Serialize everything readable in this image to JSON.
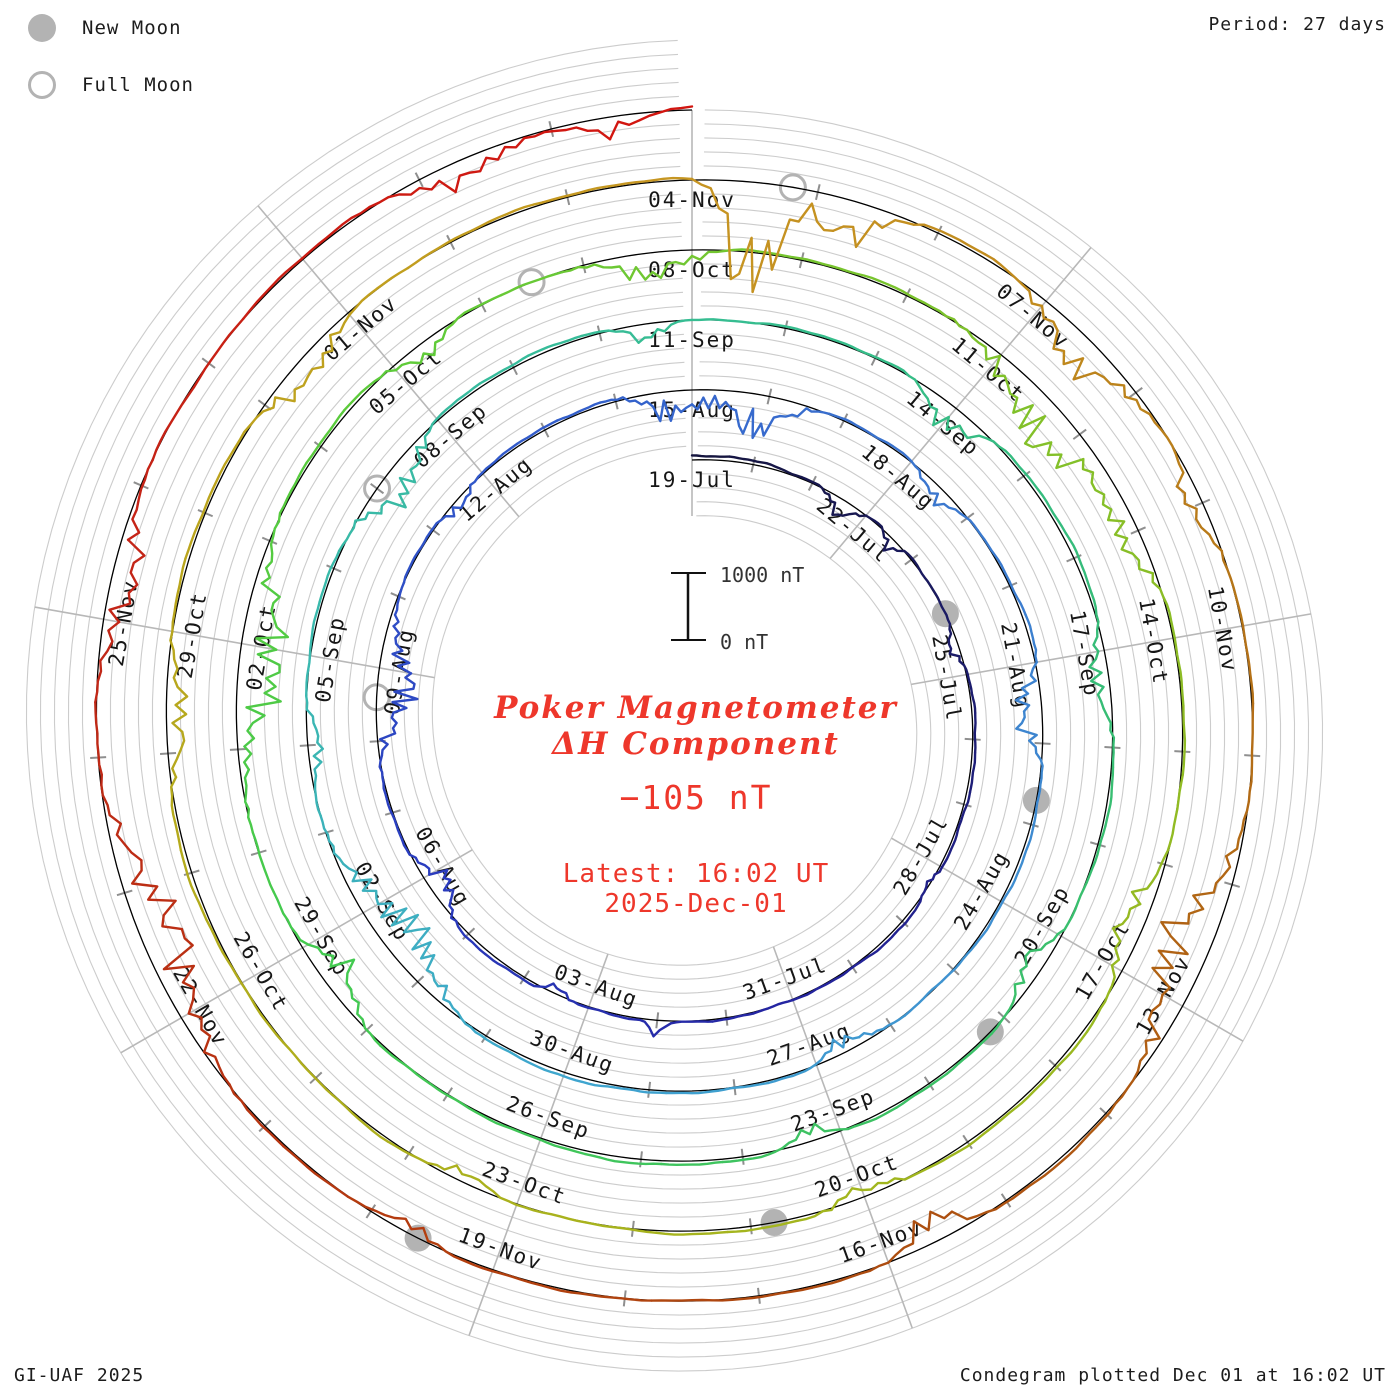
{
  "header": {
    "period_label": "Period: 27 days"
  },
  "legend": {
    "new_moon_label": "New Moon",
    "full_moon_label": "Full Moon",
    "moon_gray": "#b3b3b3"
  },
  "footer": {
    "left": "GI-UAF 2025",
    "right": "Condegram plotted Dec 01 at 16:02 UT"
  },
  "center": {
    "title_line1": "Poker Magnetometer",
    "title_line2": "ΔH Component",
    "current_value": "−105 nT",
    "latest_line1": "Latest: 16:02 UT",
    "latest_line2": "2025-Dec-01",
    "text_color": "#ee372b"
  },
  "scale_bar": {
    "top_label": "1000 nT",
    "bottom_label": "0 nT",
    "top_nT": 1000,
    "bottom_nT": 0
  },
  "chart_data": {
    "type": "line",
    "subtype": "condegram-spiral-time-series",
    "title": "Poker Magnetometer ΔH Component",
    "station": "Poker",
    "component": "ΔH",
    "latest_value_nT": -105,
    "latest_time": "16:02 UT 2025-Dec-01",
    "period_days": 27,
    "start_label": "19-Jul",
    "end_label": "01-Dec",
    "total_days": 135,
    "scale_nT_per_division": 200,
    "divisions_per_revolution": 5,
    "scale_bar_nT": [
      0,
      1000
    ],
    "date_labels": [
      {
        "d": 0,
        "t": "19-Jul"
      },
      {
        "d": 3,
        "t": "22-Jul"
      },
      {
        "d": 6,
        "t": "25-Jul"
      },
      {
        "d": 9,
        "t": "28-Jul"
      },
      {
        "d": 12,
        "t": "31-Jul"
      },
      {
        "d": 15,
        "t": "03-Aug"
      },
      {
        "d": 18,
        "t": "06-Aug"
      },
      {
        "d": 21,
        "t": "09-Aug"
      },
      {
        "d": 24,
        "t": "12-Aug"
      },
      {
        "d": 27,
        "t": "15-Aug"
      },
      {
        "d": 30,
        "t": "18-Aug"
      },
      {
        "d": 33,
        "t": "21-Aug"
      },
      {
        "d": 36,
        "t": "24-Aug"
      },
      {
        "d": 39,
        "t": "27-Aug"
      },
      {
        "d": 42,
        "t": "30-Aug"
      },
      {
        "d": 45,
        "t": "02-Sep"
      },
      {
        "d": 48,
        "t": "05-Sep"
      },
      {
        "d": 51,
        "t": "08-Sep"
      },
      {
        "d": 54,
        "t": "11-Sep"
      },
      {
        "d": 57,
        "t": "14-Sep"
      },
      {
        "d": 60,
        "t": "17-Sep"
      },
      {
        "d": 63,
        "t": "20-Sep"
      },
      {
        "d": 66,
        "t": "23-Sep"
      },
      {
        "d": 69,
        "t": "26-Sep"
      },
      {
        "d": 72,
        "t": "29-Sep"
      },
      {
        "d": 75,
        "t": "02-Oct"
      },
      {
        "d": 78,
        "t": "05-Oct"
      },
      {
        "d": 81,
        "t": "08-Oct"
      },
      {
        "d": 84,
        "t": "11-Oct"
      },
      {
        "d": 87,
        "t": "14-Oct"
      },
      {
        "d": 90,
        "t": "17-Oct"
      },
      {
        "d": 93,
        "t": "20-Oct"
      },
      {
        "d": 96,
        "t": "23-Oct"
      },
      {
        "d": 99,
        "t": "26-Oct"
      },
      {
        "d": 102,
        "t": "29-Oct"
      },
      {
        "d": 105,
        "t": "01-Nov"
      },
      {
        "d": 108,
        "t": "04-Nov"
      },
      {
        "d": 111,
        "t": "07-Nov"
      },
      {
        "d": 114,
        "t": "10-Nov"
      },
      {
        "d": 117,
        "t": "13-Nov"
      },
      {
        "d": 120,
        "t": "16-Nov"
      },
      {
        "d": 123,
        "t": "19-Nov"
      },
      {
        "d": 126,
        "t": "22-Nov"
      },
      {
        "d": 129,
        "t": "25-Nov"
      }
    ],
    "moons": {
      "new_moon_days": [
        5.0,
        34.7,
        64.2,
        93.8,
        123.6
      ],
      "full_moon_days": [
        20.6,
        50.0,
        79.5,
        108.8
      ]
    },
    "color_stops": [
      [
        0,
        "#15153d"
      ],
      [
        6,
        "#1b1b6a"
      ],
      [
        12,
        "#2424a0"
      ],
      [
        18,
        "#2a3cbe"
      ],
      [
        24,
        "#3158ca"
      ],
      [
        30,
        "#3a74ce"
      ],
      [
        36,
        "#3f8ed0"
      ],
      [
        42,
        "#3fa6cf"
      ],
      [
        48,
        "#3ab9ae"
      ],
      [
        54,
        "#36bd92"
      ],
      [
        60,
        "#36bc77"
      ],
      [
        66,
        "#3dc263"
      ],
      [
        72,
        "#43ca4f"
      ],
      [
        78,
        "#5ecb3a"
      ],
      [
        81,
        "#72c631"
      ],
      [
        87,
        "#8cbc25"
      ],
      [
        93,
        "#a2b61e"
      ],
      [
        99,
        "#b1ad1c"
      ],
      [
        105,
        "#c0a01e"
      ],
      [
        108,
        "#c79522"
      ],
      [
        111,
        "#c08a1e"
      ],
      [
        114,
        "#b47317"
      ],
      [
        117,
        "#b06013"
      ],
      [
        120,
        "#ad4d10"
      ],
      [
        123,
        "#b23f0e"
      ],
      [
        126,
        "#b93113"
      ],
      [
        129,
        "#c22617"
      ],
      [
        132,
        "#cb1d13"
      ],
      [
        135,
        "#d31510"
      ]
    ],
    "disturbance_events": [
      [
        2.6,
        -380,
        0.25
      ],
      [
        3.6,
        -260,
        0.2
      ],
      [
        5.5,
        -220,
        0.25
      ],
      [
        9.3,
        -180,
        0.2
      ],
      [
        14.0,
        260,
        0.12
      ],
      [
        15.5,
        -240,
        0.2
      ],
      [
        17.8,
        -420,
        0.4
      ],
      [
        20.8,
        -780,
        0.7
      ],
      [
        23.5,
        -250,
        0.3
      ],
      [
        26.8,
        -650,
        0.5
      ],
      [
        27.9,
        -700,
        0.45
      ],
      [
        30.5,
        -300,
        0.3
      ],
      [
        33.6,
        -520,
        0.45
      ],
      [
        38.6,
        -330,
        0.35
      ],
      [
        44.6,
        -880,
        0.8
      ],
      [
        47.0,
        -350,
        0.3
      ],
      [
        50.2,
        -620,
        0.5
      ],
      [
        53.5,
        -300,
        0.25
      ],
      [
        57.0,
        -520,
        0.35
      ],
      [
        60.3,
        -430,
        0.4
      ],
      [
        63.4,
        -380,
        0.3
      ],
      [
        66.3,
        -320,
        0.25
      ],
      [
        71.6,
        -480,
        0.4
      ],
      [
        74.8,
        -900,
        0.85
      ],
      [
        78.3,
        -380,
        0.3
      ],
      [
        80.6,
        -520,
        0.45
      ],
      [
        84.7,
        -880,
        0.75
      ],
      [
        86.0,
        -500,
        0.4
      ],
      [
        89.6,
        -520,
        0.4
      ],
      [
        93.0,
        -260,
        0.3
      ],
      [
        96.5,
        -220,
        0.3
      ],
      [
        101.3,
        -420,
        0.45
      ],
      [
        104.4,
        -480,
        0.4
      ],
      [
        108.55,
        -2200,
        0.28
      ],
      [
        109.3,
        -800,
        0.35
      ],
      [
        111.5,
        -680,
        0.5
      ],
      [
        113.0,
        -350,
        0.3
      ],
      [
        116.6,
        -850,
        0.7
      ],
      [
        119.6,
        -650,
        0.3
      ],
      [
        123.7,
        -320,
        0.25
      ],
      [
        126.6,
        -780,
        0.8
      ],
      [
        129.3,
        -560,
        0.5
      ],
      [
        133.3,
        -480,
        0.45
      ],
      [
        134.4,
        -320,
        0.3
      ]
    ],
    "grid": {
      "on": true,
      "gray_circle_color": "#cccccc",
      "baseline_color": "#000000",
      "radial_line_color": "#b8b8b8",
      "tick_color": "#8f8f8f"
    }
  }
}
